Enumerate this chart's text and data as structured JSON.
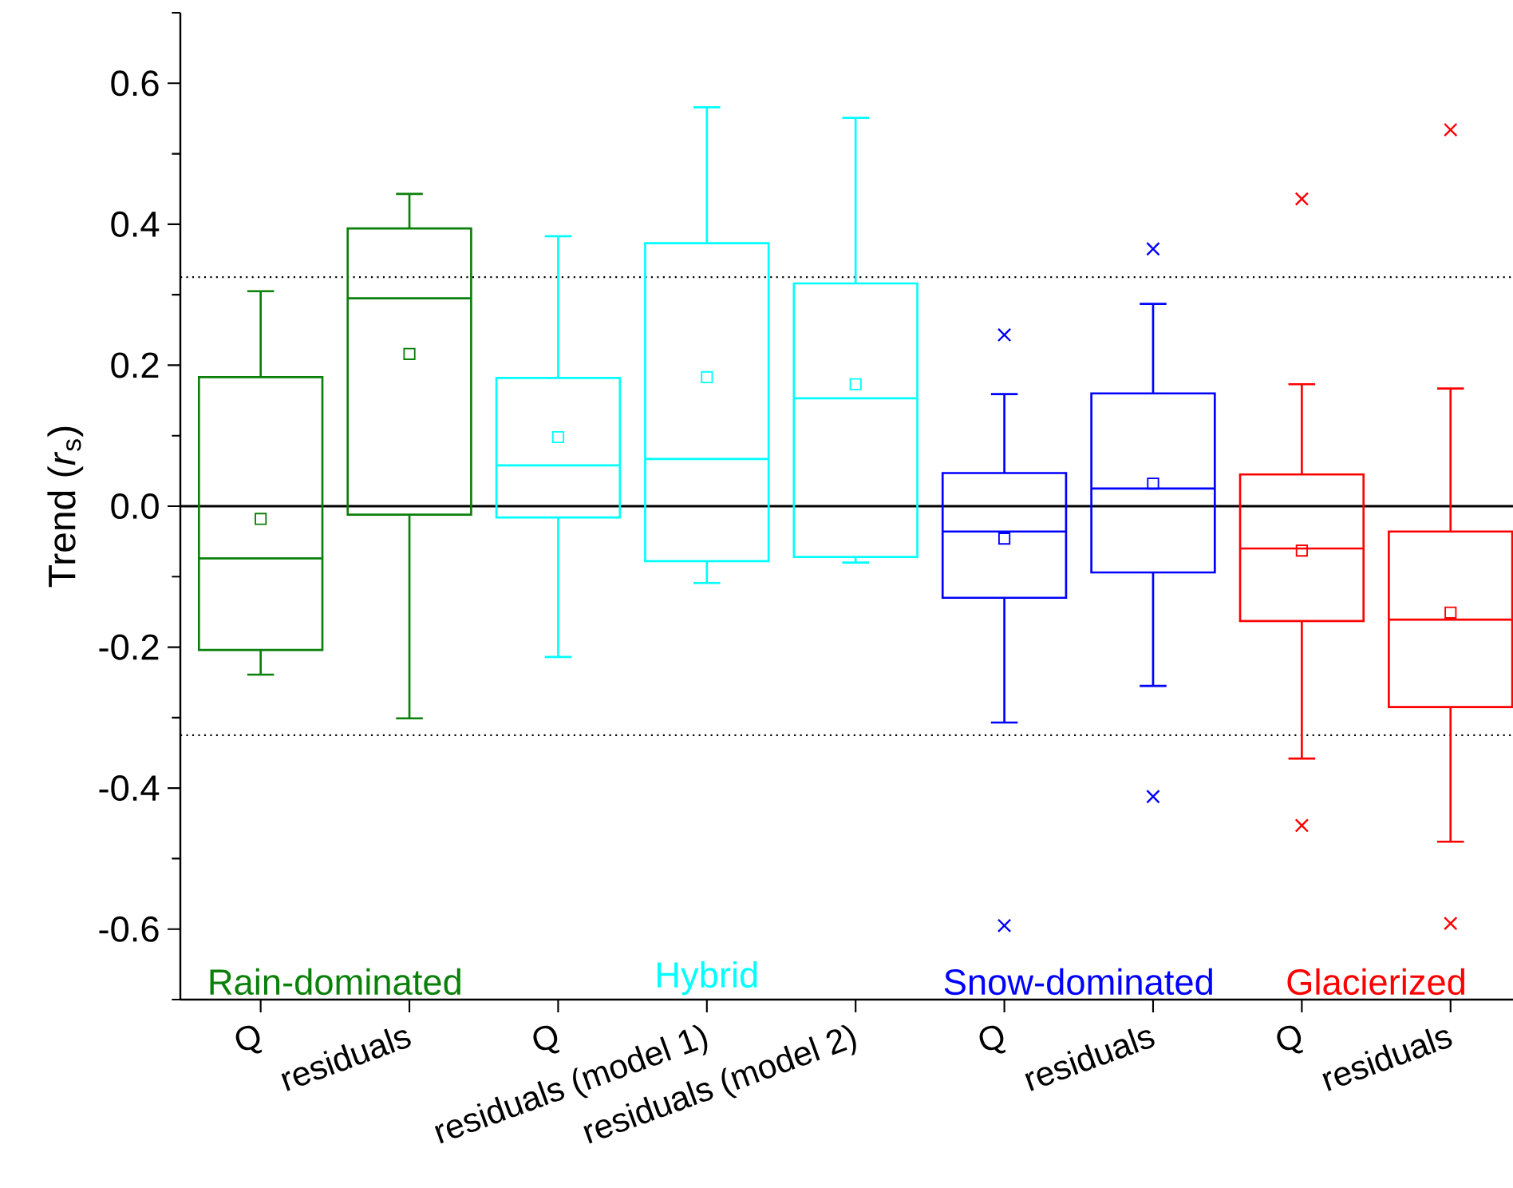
{
  "chart_data": {
    "type": "box",
    "ylabel": "Trend (*r*$_{s}$)",
    "categories": [
      "Q",
      "residuals",
      "Q",
      "residuals (model 1)",
      "residuals (model 2)",
      "Q",
      "residuals",
      "Q",
      "residuals"
    ],
    "ylim": [
      -0.7,
      0.7
    ],
    "yticks": [
      {
        "value": -0.7,
        "label": null
      },
      {
        "value": -0.6,
        "label": "-0.6"
      },
      {
        "value": -0.5,
        "label": null
      },
      {
        "value": -0.4,
        "label": "-0.4"
      },
      {
        "value": -0.3,
        "label": null
      },
      {
        "value": -0.2,
        "label": "-0.2"
      },
      {
        "value": -0.1,
        "label": null
      },
      {
        "value": 0,
        "label": "0.0"
      },
      {
        "value": 0.1,
        "label": null
      },
      {
        "value": 0.2,
        "label": "0.2"
      },
      {
        "value": 0.3,
        "label": null
      },
      {
        "value": 0.4,
        "label": "0.4"
      },
      {
        "value": 0.5,
        "label": null
      },
      {
        "value": 0.6,
        "label": "0.6"
      },
      {
        "value": 0.7,
        "label": null
      }
    ],
    "grid": false,
    "ref_lines": [
      {
        "axis": "y",
        "value": 0,
        "color": "#000000",
        "line_style": "solid"
      },
      {
        "axis": "y",
        "value": 0.325,
        "color": "#000000",
        "line_style": "dotted"
      },
      {
        "axis": "y",
        "value": -0.325,
        "color": "#000000",
        "line_style": "dotted"
      }
    ],
    "series": [
      {
        "name": "Rain-dominated",
        "color": "#0a800a",
        "boxes": [
          {
            "low": -0.239,
            "q1": -0.204,
            "median": -0.074,
            "q3": 0.183,
            "high": 0.305,
            "mean": -0.018
          },
          {
            "low": -0.301,
            "q1": -0.012,
            "median": 0.295,
            "q3": 0.394,
            "high": 0.443,
            "mean": 0.216
          },
          null,
          null,
          null,
          null,
          null,
          null,
          null
        ]
      },
      {
        "name": "Hybrid",
        "color": "#00ffff",
        "boxes": [
          null,
          null,
          {
            "low": -0.214,
            "q1": -0.016,
            "median": 0.058,
            "q3": 0.182,
            "high": 0.383,
            "mean": 0.098
          },
          {
            "low": -0.109,
            "q1": -0.078,
            "median": 0.067,
            "q3": 0.373,
            "high": 0.566,
            "mean": 0.183
          },
          {
            "low": -0.08,
            "q1": -0.072,
            "median": 0.153,
            "q3": 0.316,
            "high": 0.551,
            "mean": 0.173
          },
          null,
          null,
          null,
          null
        ]
      },
      {
        "name": "Snow-dominated",
        "color": "#0000ff",
        "marker": "cross",
        "boxes": [
          null,
          null,
          null,
          null,
          null,
          {
            "low": -0.307,
            "q1": -0.13,
            "median": -0.036,
            "q3": 0.047,
            "high": 0.159,
            "mean": -0.046,
            "outliers": [
              -0.595,
              0.243
            ]
          },
          {
            "low": -0.255,
            "q1": -0.094,
            "median": 0.025,
            "q3": 0.16,
            "high": 0.287,
            "mean": 0.032,
            "outliers": [
              -0.412,
              0.365
            ]
          },
          null,
          null
        ]
      },
      {
        "name": "Glacierized",
        "color": "#ff0000",
        "marker": "cross",
        "boxes": [
          null,
          null,
          null,
          null,
          null,
          null,
          null,
          {
            "low": -0.358,
            "q1": -0.163,
            "median": -0.06,
            "q3": 0.045,
            "high": 0.173,
            "mean": -0.063,
            "outliers": [
              -0.453,
              0.436
            ]
          },
          {
            "low": -0.476,
            "q1": -0.285,
            "median": -0.161,
            "q3": -0.036,
            "high": 0.167,
            "mean": -0.151,
            "outliers": [
              -0.592,
              0.534
            ]
          }
        ]
      }
    ]
  }
}
